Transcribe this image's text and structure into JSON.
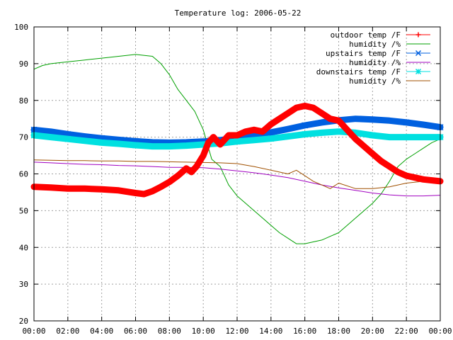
{
  "chart_data": {
    "type": "line",
    "title": "Temperature log: 2006-05-22",
    "xlabel": "",
    "ylabel": "",
    "x_ticks": [
      "00:00",
      "02:00",
      "04:00",
      "06:00",
      "08:00",
      "10:00",
      "12:00",
      "14:00",
      "16:00",
      "18:00",
      "20:00",
      "22:00",
      "00:00"
    ],
    "xlim": [
      0,
      24
    ],
    "ylim": [
      20,
      100
    ],
    "y_ticks": [
      20,
      30,
      40,
      50,
      60,
      70,
      80,
      90,
      100
    ],
    "grid": true,
    "legend_position": "top-right",
    "series": [
      {
        "name": "outdoor temp /F",
        "color": "#ff0000",
        "style": "thick-line-with-plus-markers",
        "x": [
          0,
          1,
          2,
          3,
          4,
          5,
          6,
          6.5,
          7,
          7.5,
          8,
          8.5,
          9,
          9.3,
          9.6,
          9.8,
          10,
          10.3,
          10.6,
          11,
          11.5,
          12,
          12.5,
          13,
          13.5,
          14,
          14.5,
          15,
          15.5,
          16,
          16.5,
          17,
          17.5,
          18,
          18.5,
          19,
          19.5,
          20,
          20.5,
          21,
          21.5,
          22,
          22.5,
          23,
          24
        ],
        "y": [
          56.5,
          56.3,
          56.0,
          56.0,
          55.8,
          55.5,
          54.8,
          54.5,
          55.3,
          56.5,
          57.8,
          59.5,
          61.5,
          60.5,
          62.0,
          63.5,
          65.0,
          68.5,
          70.0,
          68.0,
          70.5,
          70.5,
          71.5,
          72.0,
          71.5,
          73.5,
          75.0,
          76.5,
          78.0,
          78.5,
          78.0,
          76.5,
          75.0,
          74.5,
          72.0,
          69.5,
          67.5,
          65.5,
          63.5,
          62.0,
          60.5,
          59.5,
          59.0,
          58.5,
          58.0
        ]
      },
      {
        "name": "humidity /%",
        "color": "#00a000",
        "style": "thin-line",
        "x": [
          0,
          0.5,
          1,
          2,
          3,
          4,
          5,
          6,
          7,
          7.5,
          8,
          8.5,
          9,
          9.5,
          10,
          10.5,
          11,
          11.5,
          12,
          12.5,
          13,
          13.5,
          14,
          14.5,
          15,
          15.5,
          16,
          16.5,
          17,
          17.5,
          18,
          18.5,
          19,
          19.5,
          20,
          20.5,
          21,
          21.5,
          22,
          22.5,
          23,
          23.5,
          24
        ],
        "y": [
          88.5,
          89.5,
          90.0,
          90.5,
          91.0,
          91.5,
          92.0,
          92.5,
          92.0,
          90.0,
          87.0,
          83.0,
          80.0,
          77.0,
          72.0,
          64.0,
          62.0,
          57.0,
          54.0,
          52.0,
          50.0,
          48.0,
          46.0,
          44.0,
          42.5,
          41.0,
          41.0,
          41.5,
          42.0,
          43.0,
          44.0,
          46.0,
          48.0,
          50.0,
          52.0,
          54.5,
          58.0,
          62.0,
          64.0,
          65.5,
          67.0,
          68.5,
          69.5
        ]
      },
      {
        "name": "upstairs temp /F",
        "color": "#0060e0",
        "style": "thick-line-with-x-markers",
        "x": [
          0,
          1,
          2,
          3,
          4,
          5,
          6,
          7,
          8,
          9,
          10,
          11,
          12,
          13,
          14,
          15,
          16,
          17,
          18,
          19,
          20,
          21,
          22,
          23,
          24
        ],
        "y": [
          72.0,
          71.5,
          70.8,
          70.2,
          69.7,
          69.3,
          68.9,
          68.6,
          68.5,
          68.6,
          68.8,
          69.2,
          69.8,
          70.5,
          71.3,
          72.2,
          73.2,
          74.0,
          74.6,
          75.0,
          74.8,
          74.5,
          74.0,
          73.4,
          72.7
        ]
      },
      {
        "name": "humidity /%",
        "color": "#a000c0",
        "style": "thin-line",
        "x": [
          0,
          1,
          2,
          3,
          4,
          5,
          6,
          7,
          8,
          9,
          10,
          11,
          12,
          13,
          14,
          15,
          16,
          17,
          18,
          19,
          20,
          21,
          22,
          23,
          24
        ],
        "y": [
          63.2,
          63.0,
          62.8,
          62.6,
          62.5,
          62.3,
          62.2,
          62.0,
          61.8,
          61.8,
          61.7,
          61.3,
          60.8,
          60.3,
          59.7,
          59.0,
          58.0,
          57.0,
          56.2,
          55.5,
          54.8,
          54.3,
          54.0,
          54.0,
          54.2
        ]
      },
      {
        "name": "downstairs temp /F",
        "color": "#00e0e0",
        "style": "thick-line-with-star-markers",
        "x": [
          0,
          1,
          2,
          3,
          4,
          5,
          6,
          7,
          8,
          9,
          10,
          11,
          12,
          13,
          14,
          15,
          16,
          17,
          18,
          19,
          20,
          21,
          22,
          23,
          24
        ],
        "y": [
          70.5,
          70.0,
          69.5,
          69.0,
          68.5,
          68.2,
          67.8,
          67.5,
          67.5,
          67.7,
          68.0,
          68.3,
          68.8,
          69.2,
          69.6,
          70.2,
          70.8,
          71.2,
          71.5,
          71.2,
          70.5,
          70.0,
          70.0,
          70.0,
          70.0
        ]
      },
      {
        "name": "humidity /%",
        "color": "#a05000",
        "style": "thin-line",
        "x": [
          0,
          1,
          2,
          3,
          4,
          5,
          6,
          7,
          8,
          9,
          10,
          11,
          12,
          13,
          14,
          15,
          15.5,
          16,
          16.5,
          17,
          17.5,
          18,
          19,
          20,
          21,
          22,
          23,
          24
        ],
        "y": [
          63.8,
          63.7,
          63.6,
          63.6,
          63.5,
          63.5,
          63.4,
          63.4,
          63.3,
          63.2,
          63.1,
          63.0,
          62.8,
          62.0,
          61.0,
          60.0,
          61.0,
          59.5,
          58.0,
          57.0,
          56.0,
          57.5,
          56.0,
          56.0,
          56.5,
          57.5,
          58.0,
          58.0
        ]
      }
    ]
  }
}
